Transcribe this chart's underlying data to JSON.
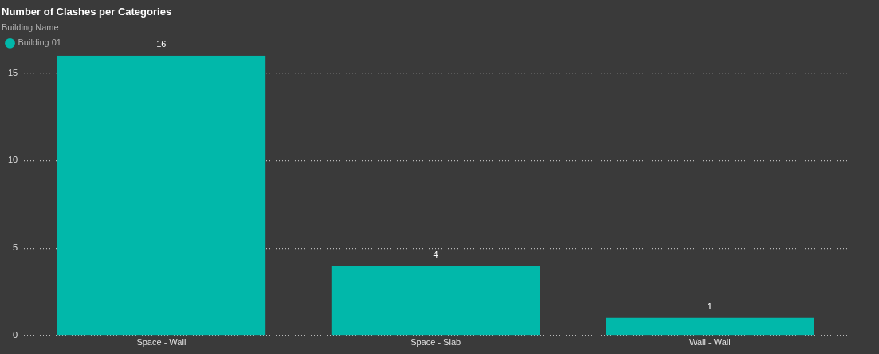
{
  "chart_data": {
    "type": "bar",
    "title": "Number of Clashes per Categories",
    "legend_title": "Building Name",
    "categories": [
      "Space - Wall",
      "Space - Slab",
      "Wall - Wall"
    ],
    "series": [
      {
        "name": "Building 01",
        "color": "#01b8aa",
        "values": [
          16,
          4,
          1
        ]
      }
    ],
    "ylim": [
      0,
      16
    ],
    "yticks": [
      0,
      5,
      10,
      15
    ],
    "grid": "y",
    "legend": "top left",
    "data_labels": true
  }
}
